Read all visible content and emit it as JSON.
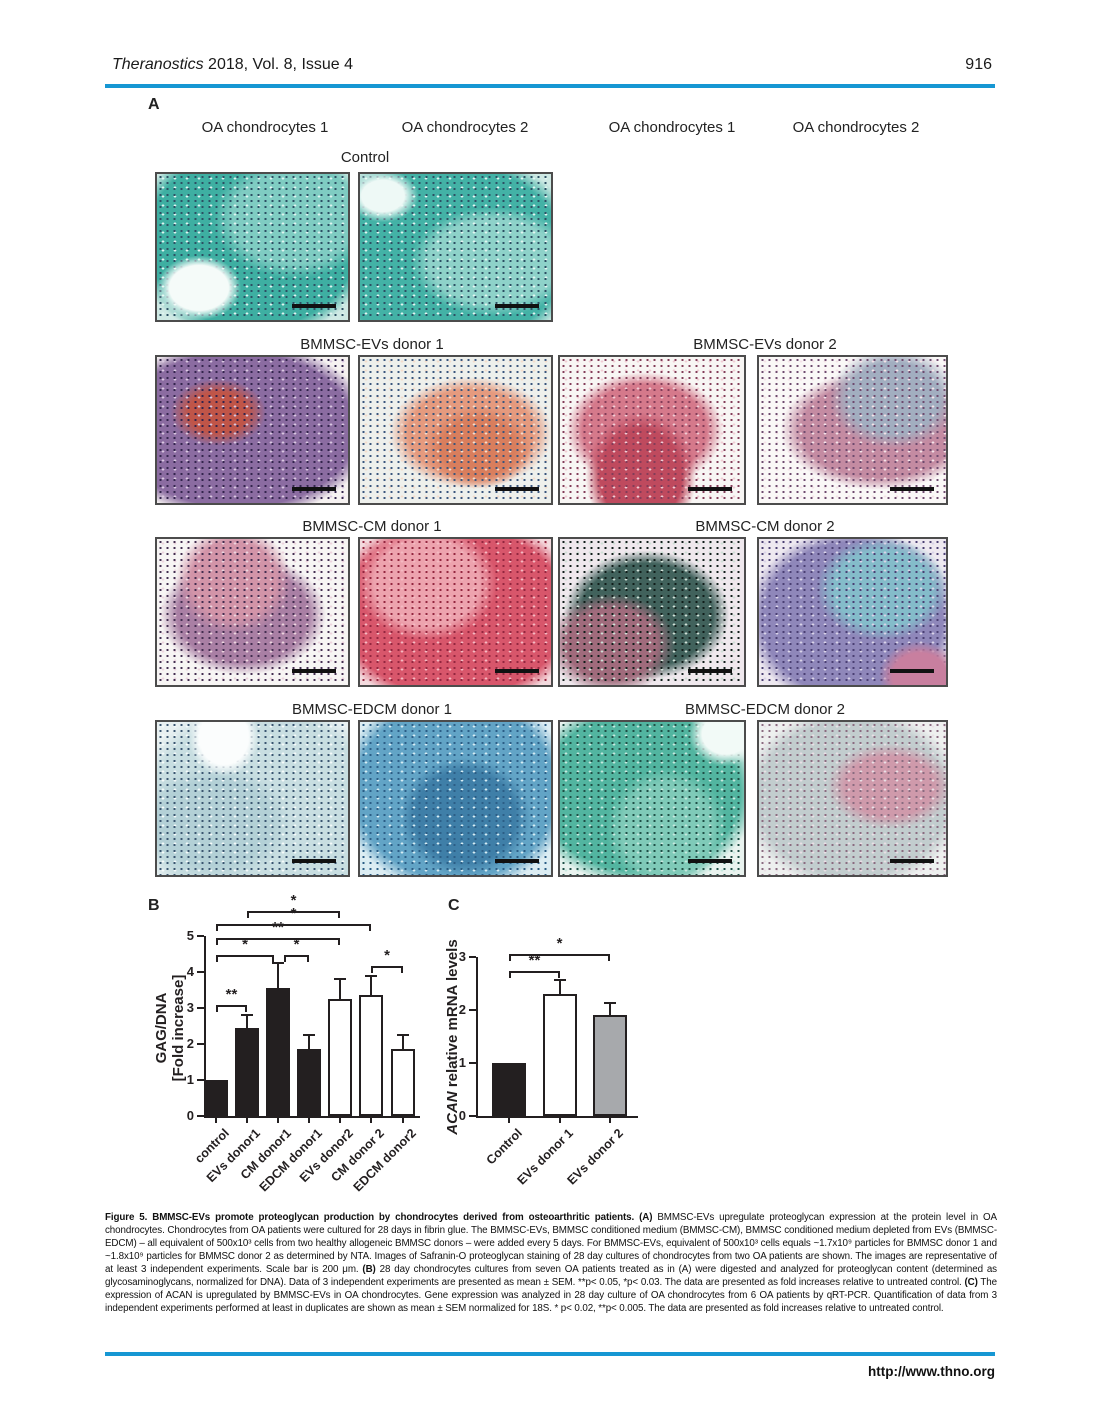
{
  "page": {
    "header": {
      "journal_italic": "Theranostics",
      "journal_rest": " 2018, Vol. 8, Issue 4",
      "page_number": "916"
    },
    "footer": {
      "url": "http://www.thno.org"
    },
    "accent_color": "#1697d3"
  },
  "figure": {
    "panelA": {
      "label": "A",
      "column_headers": [
        "OA chondrocytes 1",
        "OA chondrocytes 2",
        "OA chondrocytes 1",
        "OA chondrocytes 2"
      ],
      "control_label": "Control",
      "group_labels": [
        [
          "BMMSC-EVs donor 1",
          "BMMSC-EVs donor 2"
        ],
        [
          "BMMSC-CM donor 1",
          "BMMSC-CM donor 2"
        ],
        [
          "BMMSC-EDCM donor 1",
          "BMMSC-EDCM donor 2"
        ]
      ],
      "tiles": [
        {
          "name": "control-oa1",
          "colors": {
            "bg": "#cfe9e4",
            "blob": "#3eafa2",
            "blob2": "#7fccc2",
            "dot": "#2c4f63",
            "lt": "#dff4f0",
            "patch": "#f5fbf9"
          }
        },
        {
          "name": "control-oa2",
          "colors": {
            "bg": "#cfe9e4",
            "blob": "#43b2a6",
            "blob2": "#8ed2c9",
            "dot": "#2c4f63",
            "lt": "#e2f5f1",
            "patch": "#eef9f6"
          }
        },
        {
          "name": "evs-donor1-oa1",
          "colors": {
            "bg": "#f6f2f1",
            "blob": "#8b6ca1",
            "blob2": "#c05548",
            "dot": "#33244d",
            "lt": "#d8c6e0"
          }
        },
        {
          "name": "evs-donor1-oa2",
          "colors": {
            "bg": "#eef0ec",
            "blob": "#e59a7e",
            "blob2": "#d97e5d",
            "dot": "#39557c",
            "lt": "#f4dccc"
          }
        },
        {
          "name": "evs-donor2-oa1",
          "colors": {
            "bg": "#f8f6f4",
            "blob": "#d5798b",
            "blob2": "#bf4a5e",
            "dot": "#833c58",
            "lt": "#f0ccd4"
          }
        },
        {
          "name": "evs-donor2-oa2",
          "colors": {
            "bg": "#faf8f7",
            "blob": "#c48ba2",
            "blob2": "#a2aec0",
            "dot": "#6e4a6e",
            "lt": "#f4e2e8"
          }
        },
        {
          "name": "cm-donor1-oa1",
          "colors": {
            "bg": "#f7f5f4",
            "blob": "#a97fa4",
            "blob2": "#d294a8",
            "dot": "#432d50",
            "lt": "#ecd4de"
          }
        },
        {
          "name": "cm-donor1-oa2",
          "colors": {
            "bg": "#f3dade",
            "blob": "#d8566b",
            "blob2": "#eda3ae",
            "dot": "#93263f",
            "lt": "#f4b9c1"
          }
        },
        {
          "name": "cm-donor2-oa1",
          "colors": {
            "bg": "#efe8ed",
            "blob": "#41625c",
            "blob2": "#a06b7c",
            "dot": "#101d1a",
            "lt": "#cfdfd6"
          }
        },
        {
          "name": "cm-donor2-oa2",
          "colors": {
            "bg": "#eee9f0",
            "blob": "#8f87ba",
            "blob2": "#84bcca",
            "dot": "#4a3f73",
            "lt": "#d9d3e8",
            "patch": "#c87f9f"
          }
        },
        {
          "name": "edcm-donor1-oa1",
          "colors": {
            "bg": "#e9f1f2",
            "blob": "#c8dee1",
            "blob2": "#b3d0d6",
            "dot": "#3a5570",
            "lt": "#f4fafa",
            "patch": "#fbfdfd"
          }
        },
        {
          "name": "edcm-donor1-oa2",
          "colors": {
            "bg": "#dcedf3",
            "blob": "#62a4c6",
            "blob2": "#3f7fa8",
            "dot": "#2b5e86",
            "lt": "#d6ecf3"
          }
        },
        {
          "name": "edcm-donor2-oa1",
          "colors": {
            "bg": "#e9f3ef",
            "blob": "#52b5a0",
            "blob2": "#7fcab8",
            "dot": "#1f4f46",
            "lt": "#c6e8de",
            "patch": "#f2faf7"
          }
        },
        {
          "name": "edcm-donor2-oa2",
          "colors": {
            "bg": "#eef0ef",
            "blob": "#c2cdce",
            "blob2": "#cf9aab",
            "dot": "#8a6b80",
            "lt": "#e9dfe5"
          }
        }
      ]
    },
    "caption": {
      "segments": [
        {
          "b": true,
          "t": "Figure 5. BMMSC-EVs promote proteoglycan production by chondrocytes derived from osteoarthritic patients. "
        },
        {
          "b": true,
          "t": "(A)"
        },
        {
          "t": " BMMSC-EVs upregulate proteoglycan expression at the protein level in OA chondrocytes. Chondrocytes from OA patients were cultured for 28 days in fibrin glue. The BMMSC-EVs, BMMSC conditioned medium (BMMSC-CM), BMMSC conditioned medium depleted from EVs (BMMSC-EDCM) – all equivalent of 500x10³ cells from two healthy allogeneic BMMSC donors – were added every 5 days. For BMMSC-EVs, equivalent of 500x10³ cells equals ~1.7x10⁹ particles for BMMSC donor 1 and ~1.8x10⁹ particles for BMMSC donor 2 as determined by NTA. Images of Safranin-O proteoglycan staining of 28 day cultures of chondrocytes from two OA patients are shown. The images are representative of at least 3 independent experiments. Scale bar is 200 μm. "
        },
        {
          "b": true,
          "t": "(B)"
        },
        {
          "t": " 28 day chondrocytes cultures from seven OA patients treated as in (A) were digested and analyzed for proteoglycan content (determined as glycosaminoglycans, normalized for DNA). Data of 3 independent experiments are presented as mean ± SEM. **p< 0.05, *p< 0.03. The data are presented as fold increases relative to untreated control. "
        },
        {
          "b": true,
          "t": "(C)"
        },
        {
          "t": " The expression of ACAN is upregulated by BMMSC-EVs in OA chondrocytes. Gene expression was analyzed in 28 day culture of OA chondrocytes from 6 OA patients by qRT-PCR. Quantification of data from 3 independent experiments performed at least in duplicates are shown as mean ± SEM normalized for 18S. * p< 0.02, **p< 0.005. The data are presented as fold increases relative to untreated control."
        }
      ]
    }
  },
  "chart_data": [
    {
      "type": "bar",
      "panel_label": "B",
      "title": "",
      "ylabel": "GAG/DNA [Fold increase]",
      "ylabel_line1": "GAG/DNA",
      "ylabel_line2": "[Fold increase]",
      "categories": [
        "control",
        "EVs  donor1",
        "CM donor1",
        "EDCM donor1",
        "EVs  donor2",
        "CM donor 2",
        "EDCM donor2"
      ],
      "values": [
        1.0,
        2.45,
        3.55,
        1.85,
        3.25,
        3.35,
        1.85
      ],
      "errors": [
        0,
        0.35,
        0.7,
        0.4,
        0.55,
        0.55,
        0.4
      ],
      "bar_colors": [
        "#231f20",
        "#231f20",
        "#231f20",
        "#231f20",
        "#ffffff",
        "#ffffff",
        "#ffffff"
      ],
      "ylim": [
        0,
        5
      ],
      "yticks": [
        0,
        1,
        2,
        3,
        4,
        5
      ],
      "grid": false,
      "significance": [
        {
          "from": 0,
          "to": 1,
          "y": 3.08,
          "label": "**"
        },
        {
          "from": 0,
          "to": 2,
          "y": 4.47,
          "label": "*",
          "dx2": -4
        },
        {
          "from": 2,
          "to": 3,
          "y": 4.47,
          "label": "*",
          "dx1": 6
        },
        {
          "from": 0,
          "to": 4,
          "y": 4.95,
          "label": "**"
        },
        {
          "from": 0,
          "to": 5,
          "y": 5.32,
          "label": "*"
        },
        {
          "from": 1,
          "to": 4,
          "y": 5.7,
          "label": "*"
        },
        {
          "from": 5,
          "to": 6,
          "y": 4.17,
          "label": "*"
        }
      ]
    },
    {
      "type": "bar",
      "panel_label": "C",
      "title": "",
      "ylabel": "ACAN relative mRNA levels",
      "ylabel_italic": "ACAN",
      "ylabel_rest": " relative mRNA levels",
      "categories": [
        "Control",
        "EVs donor 1",
        "EVs donor 2"
      ],
      "values": [
        1.0,
        2.3,
        1.9
      ],
      "errors": [
        0,
        0.27,
        0.24
      ],
      "bar_colors": [
        "#231f20",
        "#ffffff",
        "#a7a9ac"
      ],
      "ylim": [
        0,
        3
      ],
      "yticks": [
        0,
        1,
        2,
        3
      ],
      "grid": false,
      "significance": [
        {
          "from": 0,
          "to": 1,
          "y": 2.74,
          "label": "**"
        },
        {
          "from": 0,
          "to": 2,
          "y": 3.06,
          "label": "*"
        }
      ]
    }
  ]
}
